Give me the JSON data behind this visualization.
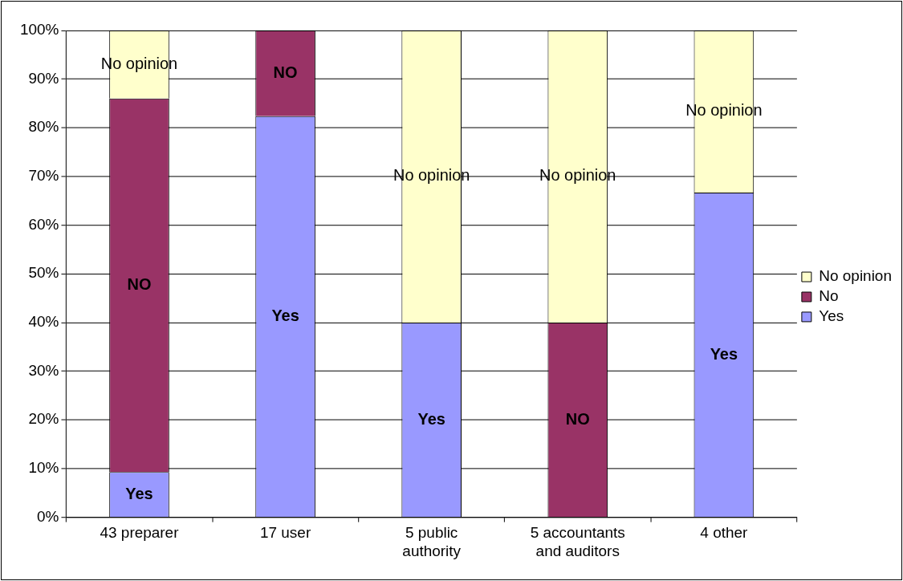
{
  "chart_data": {
    "type": "bar",
    "stacked": true,
    "categories": [
      "43 preparer",
      "17 user",
      "5 public authority",
      "5 accountants and auditors",
      "4 other"
    ],
    "series": [
      {
        "name": "Yes",
        "color": "#9999ff",
        "values": [
          9.3,
          82.4,
          40,
          0,
          66.7
        ],
        "value_labels": [
          "Yes",
          "Yes",
          "Yes",
          null,
          "Yes"
        ]
      },
      {
        "name": "No",
        "color": "#993366",
        "values": [
          76.7,
          17.6,
          0,
          40,
          0
        ],
        "value_labels": [
          "NO",
          "NO",
          null,
          "NO",
          null
        ]
      },
      {
        "name": "No opinion",
        "color": "#ffffcc",
        "values": [
          14,
          0,
          60,
          60,
          33.3
        ],
        "value_labels": [
          "No opinion",
          null,
          "No opinion",
          "No opinion",
          "No opinion"
        ]
      }
    ],
    "ylim": [
      0,
      100
    ],
    "yticks": [
      {
        "value": 0,
        "label": "0%"
      },
      {
        "value": 10,
        "label": "10%"
      },
      {
        "value": 20,
        "label": "20%"
      },
      {
        "value": 30,
        "label": "30%"
      },
      {
        "value": 40,
        "label": "40%"
      },
      {
        "value": 50,
        "label": "50%"
      },
      {
        "value": 60,
        "label": "60%"
      },
      {
        "value": 70,
        "label": "70%"
      },
      {
        "value": 80,
        "label": "80%"
      },
      {
        "value": 90,
        "label": "90%"
      },
      {
        "value": 100,
        "label": "100%"
      }
    ],
    "grid": "y",
    "legend": "right"
  }
}
